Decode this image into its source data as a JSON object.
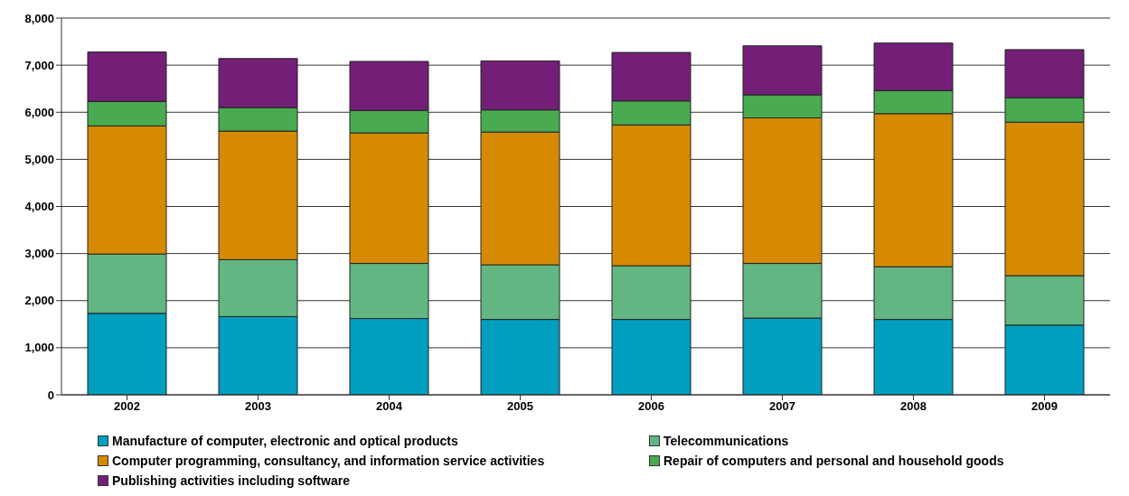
{
  "chart_data": {
    "type": "bar",
    "stacked": true,
    "categories": [
      "2002",
      "2003",
      "2004",
      "2005",
      "2006",
      "2007",
      "2008",
      "2009"
    ],
    "series": [
      {
        "name": "Manufacture of computer, electronic and optical products",
        "color": "#009fbf",
        "values": [
          1730,
          1660,
          1620,
          1600,
          1600,
          1630,
          1600,
          1480
        ]
      },
      {
        "name": "Telecommunications",
        "color": "#62b682",
        "values": [
          1260,
          1210,
          1170,
          1160,
          1140,
          1160,
          1120,
          1050
        ]
      },
      {
        "name": "Computer programming, consultancy, and information service activities",
        "color": "#d68a04",
        "values": [
          2720,
          2730,
          2770,
          2820,
          2990,
          3090,
          3250,
          3260
        ]
      },
      {
        "name": "Repair of computers and personal and household goods",
        "color": "#4aaa50",
        "values": [
          520,
          500,
          480,
          470,
          510,
          490,
          490,
          520
        ]
      },
      {
        "name": "Publishing activities including software",
        "color": "#741f77",
        "values": [
          1050,
          1040,
          1040,
          1040,
          1030,
          1040,
          1010,
          1020
        ]
      }
    ],
    "ylim": [
      0,
      8000
    ],
    "yticks": [
      0,
      {
        "value": 1000,
        "label": "1,000"
      },
      {
        "value": 2000,
        "label": "2,000"
      },
      {
        "value": 3000,
        "label": "3,000"
      },
      {
        "value": 4000,
        "label": "4,000"
      },
      {
        "value": 5000,
        "label": "5,000"
      },
      {
        "value": 6000,
        "label": "6,000"
      },
      {
        "value": 7000,
        "label": "7,000"
      },
      {
        "value": 8000,
        "label": "8,000"
      }
    ],
    "grid": "y",
    "legend": "bottom"
  }
}
